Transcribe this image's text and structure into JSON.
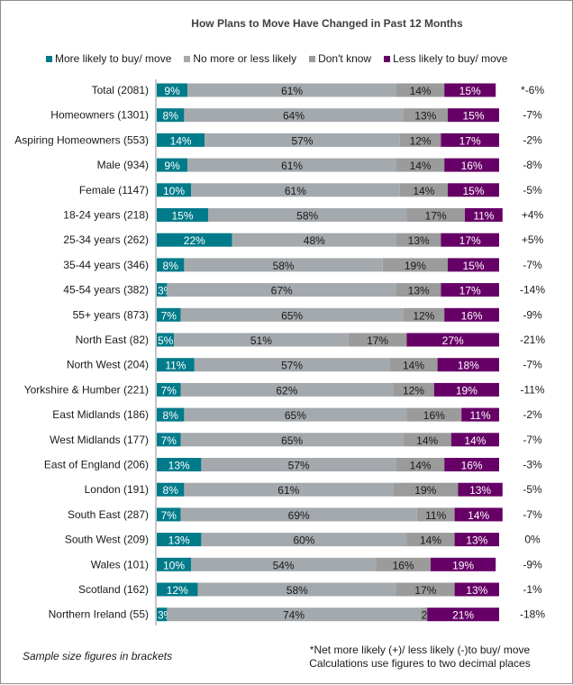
{
  "chart_data": {
    "type": "bar",
    "orientation": "horizontal",
    "stacked": true,
    "title": "How Plans to Move Have Changed in Past 12 Months",
    "xlabel": "",
    "ylabel": "",
    "xlim": [
      0,
      100
    ],
    "grid": false,
    "legend_position": "top",
    "categories": [
      "Total (2081)",
      "Homeowners (1301)",
      "Aspiring Homeowners (553)",
      "Male (934)",
      "Female (1147)",
      "18-24 years (218)",
      "25-34 years (262)",
      "35-44 years (346)",
      "45-54 years (382)",
      "55+ years (873)",
      "North East (82)",
      "North West (204)",
      "Yorkshire & Humber (221)",
      "East Midlands (186)",
      "West Midlands (177)",
      "East of England (206)",
      "London (191)",
      "South East (287)",
      "South West (209)",
      "Wales (101)",
      "Scotland (162)",
      "Northern Ireland (55)"
    ],
    "series": [
      {
        "name": "More likely to buy/ move",
        "color": "#007b8a",
        "label_color": "#ffffff",
        "values": [
          9,
          8,
          14,
          9,
          10,
          15,
          22,
          8,
          3,
          7,
          5,
          11,
          7,
          8,
          7,
          13,
          8,
          7,
          13,
          10,
          12,
          3
        ]
      },
      {
        "name": "No more or less likely",
        "color": "#a4a9ae",
        "label_color": "#1a1a1a",
        "values": [
          61,
          64,
          57,
          61,
          61,
          58,
          48,
          58,
          67,
          65,
          51,
          57,
          62,
          65,
          65,
          57,
          61,
          69,
          60,
          54,
          58,
          74
        ]
      },
      {
        "name": "Don't know",
        "color": "#9b9b9b",
        "label_color": "#1a1a1a",
        "values": [
          14,
          13,
          12,
          14,
          14,
          17,
          13,
          19,
          13,
          12,
          17,
          14,
          12,
          16,
          14,
          14,
          19,
          11,
          14,
          16,
          17,
          2
        ]
      },
      {
        "name": "Less likely to buy/ move",
        "color": "#660066",
        "label_color": "#ffffff",
        "values": [
          15,
          15,
          17,
          16,
          15,
          11,
          17,
          15,
          17,
          16,
          27,
          18,
          19,
          11,
          14,
          16,
          13,
          14,
          13,
          19,
          13,
          21
        ]
      }
    ],
    "net_labels": [
      "*-6%",
      "-7%",
      "-2%",
      "-8%",
      "-5%",
      "+4%",
      "+5%",
      "-7%",
      "-14%",
      "-9%",
      "-21%",
      "-7%",
      "-11%",
      "-2%",
      "-7%",
      "-3%",
      "-5%",
      "-7%",
      "0%",
      "-9%",
      "-1%",
      "-18%"
    ],
    "data_label_suffix": "%"
  },
  "footnotes": {
    "left": "Sample size figures in brackets",
    "right_line1": "*Net more likely (+)/ less likely (-)to buy/ move",
    "right_line2": "Calculations use figures to two decimal places"
  }
}
